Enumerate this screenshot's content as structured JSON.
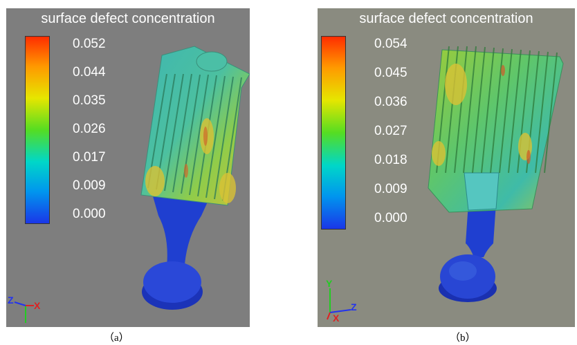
{
  "panels": [
    {
      "title": "surface defect concentration",
      "legend_ticks": [
        "0.052",
        "0.044",
        "0.035",
        "0.026",
        "0.017",
        "0.009",
        "0.000"
      ],
      "axis_labels": [
        "Z",
        "X"
      ],
      "caption": "（a）"
    },
    {
      "title": "surface defect concentration",
      "legend_ticks": [
        "0.054",
        "0.045",
        "0.036",
        "0.027",
        "0.018",
        "0.009",
        "0.000"
      ],
      "axis_labels": [
        "Y",
        "Z",
        "X"
      ],
      "caption": "（b）"
    }
  ],
  "colors": {
    "panel_a_background": "#7e7e7e",
    "panel_b_background": "#8a8b80",
    "part_blue": "#1f3fd0",
    "colormap": [
      "#ff2d00",
      "#e6e600",
      "#55dd22",
      "#00d7c8",
      "#1a36e8"
    ]
  }
}
